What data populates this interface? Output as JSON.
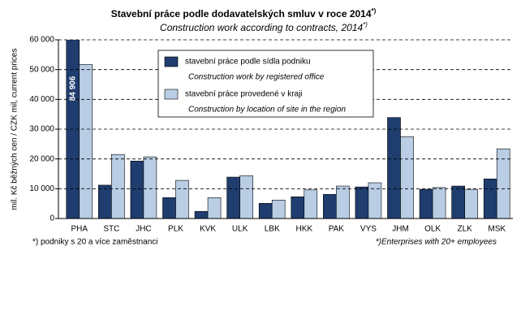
{
  "chart_data": {
    "type": "bar",
    "title": "Stavební práce  podle dodavatelských  smluv v roce 2014",
    "title_note": "*)",
    "subtitle": "Construction work according to contracts, 2014",
    "subtitle_note": "*)",
    "y_label": "mil. Kč běžných cen / CZK mil, current prices",
    "categories": [
      "PHA",
      "STC",
      "JHC",
      "PLK",
      "KVK",
      "ULK",
      "LBK",
      "HKK",
      "PAK",
      "VYS",
      "JHM",
      "OLK",
      "ZLK",
      "MSK"
    ],
    "series": [
      {
        "name": "stavební práce podle sídla podniku",
        "name_en": "Construction work by registered office",
        "color": "#1f3d6e",
        "values": [
          84906,
          11200,
          19300,
          7000,
          2400,
          13900,
          5100,
          7300,
          8100,
          10600,
          33900,
          9800,
          10900,
          13300
        ],
        "value_labels": [
          "84 906",
          null,
          null,
          null,
          null,
          null,
          null,
          null,
          null,
          null,
          null,
          null,
          null,
          null
        ]
      },
      {
        "name": "stavební práce  provedené v kraji",
        "name_en": "Construction by location of site in the region",
        "color": "#b9cde5",
        "values": [
          51700,
          21500,
          20700,
          12800,
          7000,
          14400,
          6200,
          9600,
          10900,
          12000,
          27500,
          10400,
          9800,
          23400
        ]
      }
    ],
    "ylim": [
      0,
      60000
    ],
    "yticks": [
      0,
      {
        "value": 10000,
        "label": "10 000"
      },
      {
        "value": 20000,
        "label": "20 000"
      },
      {
        "value": 30000,
        "label": "30 000"
      },
      {
        "value": 40000,
        "label": "40 000"
      },
      {
        "value": 50000,
        "label": "50 000"
      },
      {
        "value": 60000,
        "label": "60 000"
      }
    ],
    "grid": true,
    "footnote_left": "*) podniky s 20 a více zaměstnanci",
    "footnote_right": "*)Enterprises with  20+ employees"
  }
}
